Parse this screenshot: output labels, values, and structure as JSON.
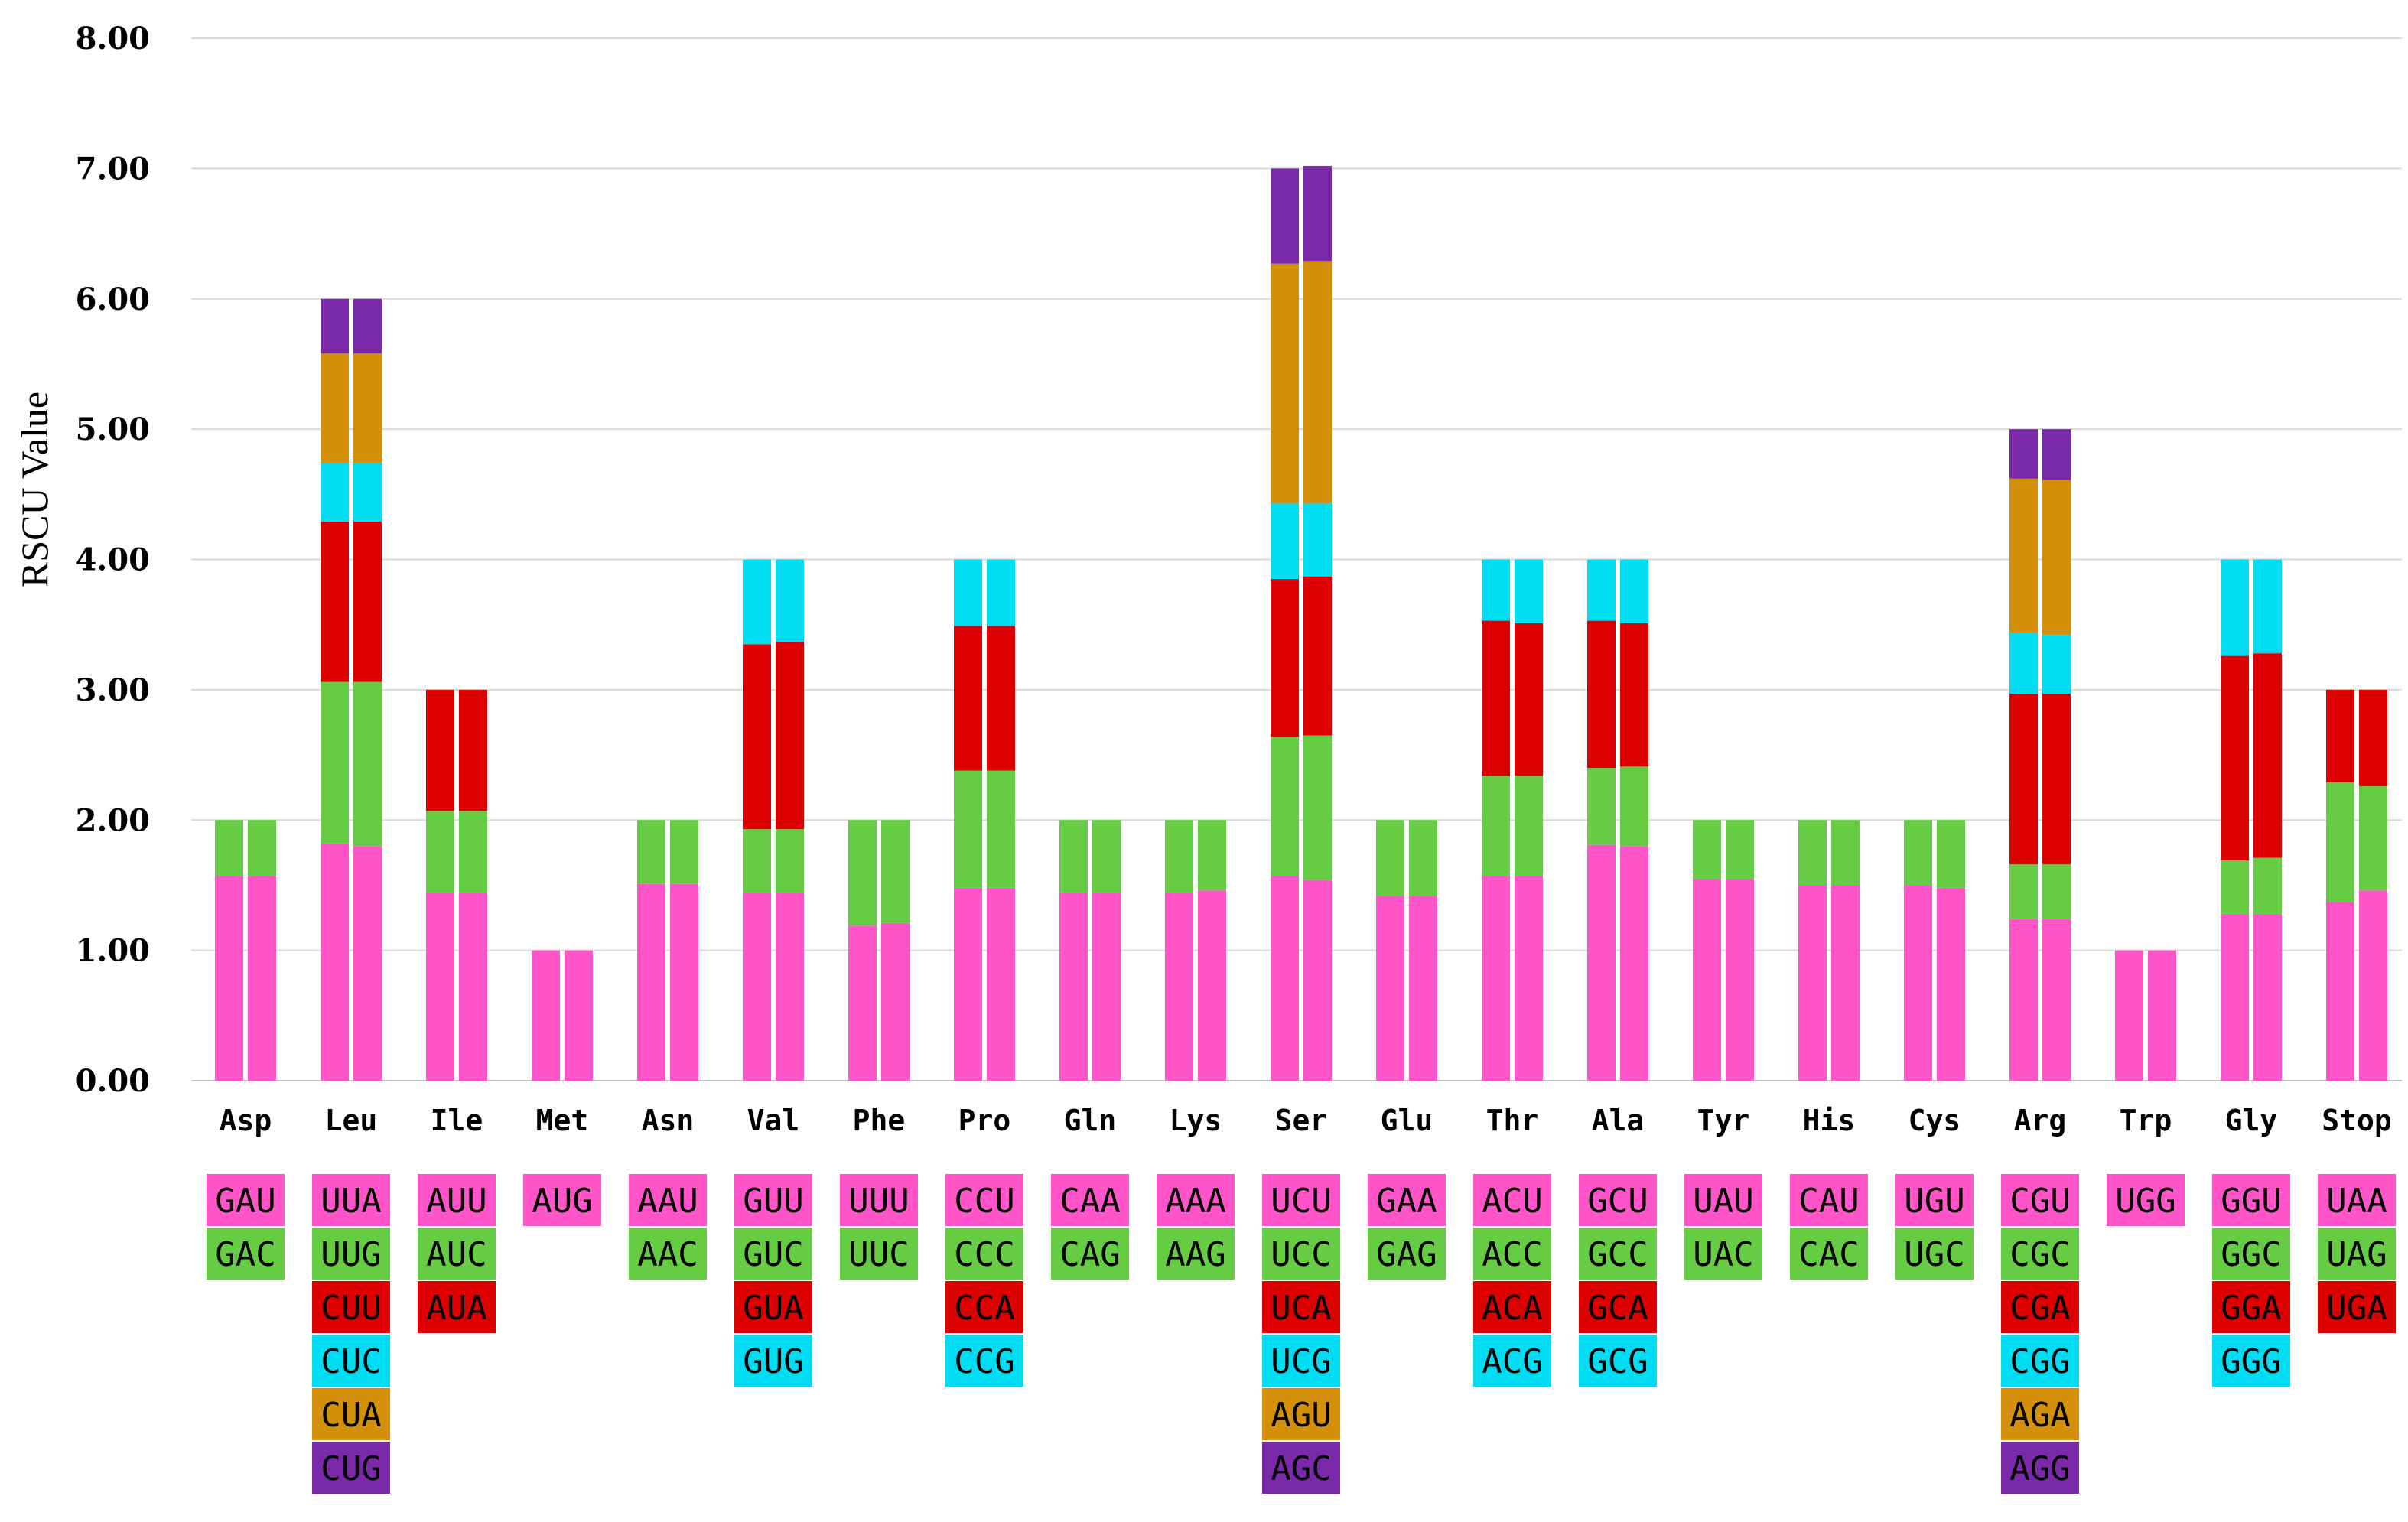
{
  "chart_data": {
    "type": "bar",
    "stacked": true,
    "title": "",
    "xlabel": "",
    "ylabel": "RSCU Value",
    "ylim": [
      0,
      8
    ],
    "y_ticks": [
      "0.00",
      "1.00",
      "2.00",
      "3.00",
      "4.00",
      "5.00",
      "6.00",
      "7.00",
      "8.00"
    ],
    "grid": true,
    "bars_per_category": 2,
    "colors": [
      "#ff55c8",
      "#66cc44",
      "#dd0000",
      "#00ddf2",
      "#d4900a",
      "#7a2aa8"
    ],
    "categories": [
      {
        "aa": "Asp",
        "codons": [
          "GAU",
          "GAC"
        ],
        "bars": [
          [
            1.57,
            0.43
          ],
          [
            1.57,
            0.43
          ]
        ]
      },
      {
        "aa": "Leu",
        "codons": [
          "UUA",
          "UUG",
          "CUU",
          "CUC",
          "CUA",
          "CUG"
        ],
        "bars": [
          [
            1.82,
            1.24,
            1.23,
            0.45,
            0.84,
            0.42
          ],
          [
            1.8,
            1.26,
            1.23,
            0.45,
            0.84,
            0.42
          ]
        ]
      },
      {
        "aa": "Ile",
        "codons": [
          "AUU",
          "AUC",
          "AUA"
        ],
        "bars": [
          [
            1.44,
            0.63,
            0.93
          ],
          [
            1.44,
            0.63,
            0.93
          ]
        ]
      },
      {
        "aa": "Met",
        "codons": [
          "AUG"
        ],
        "bars": [
          [
            1.0
          ],
          [
            1.0
          ]
        ]
      },
      {
        "aa": "Asn",
        "codons": [
          "AAU",
          "AAC"
        ],
        "bars": [
          [
            1.51,
            0.49
          ],
          [
            1.51,
            0.49
          ]
        ]
      },
      {
        "aa": "Val",
        "codons": [
          "GUU",
          "GUC",
          "GUA",
          "GUG"
        ],
        "bars": [
          [
            1.44,
            0.49,
            1.42,
            0.65
          ],
          [
            1.44,
            0.49,
            1.44,
            0.63
          ]
        ]
      },
      {
        "aa": "Phe",
        "codons": [
          "UUU",
          "UUC"
        ],
        "bars": [
          [
            1.19,
            0.81
          ],
          [
            1.21,
            0.79
          ]
        ]
      },
      {
        "aa": "Pro",
        "codons": [
          "CCU",
          "CCC",
          "CCA",
          "CCG"
        ],
        "bars": [
          [
            1.48,
            0.9,
            1.11,
            0.51
          ],
          [
            1.48,
            0.9,
            1.11,
            0.51
          ]
        ]
      },
      {
        "aa": "Gln",
        "codons": [
          "CAA",
          "CAG"
        ],
        "bars": [
          [
            1.44,
            0.56
          ],
          [
            1.44,
            0.56
          ]
        ]
      },
      {
        "aa": "Lys",
        "codons": [
          "AAA",
          "AAG"
        ],
        "bars": [
          [
            1.44,
            0.56
          ],
          [
            1.46,
            0.54
          ]
        ]
      },
      {
        "aa": "Ser",
        "codons": [
          "UCU",
          "UCC",
          "UCA",
          "UCG",
          "AGU",
          "AGC"
        ],
        "bars": [
          [
            1.57,
            1.07,
            1.21,
            0.58,
            1.84,
            0.73
          ],
          [
            1.54,
            1.11,
            1.22,
            0.56,
            1.86,
            0.73
          ]
        ]
      },
      {
        "aa": "Glu",
        "codons": [
          "GAA",
          "GAG"
        ],
        "bars": [
          [
            1.42,
            0.58
          ],
          [
            1.42,
            0.58
          ]
        ]
      },
      {
        "aa": "Thr",
        "codons": [
          "ACU",
          "ACC",
          "ACA",
          "ACG"
        ],
        "bars": [
          [
            1.57,
            0.77,
            1.19,
            0.47
          ],
          [
            1.57,
            0.77,
            1.17,
            0.49
          ]
        ]
      },
      {
        "aa": "Ala",
        "codons": [
          "GCU",
          "GCC",
          "GCA",
          "GCG"
        ],
        "bars": [
          [
            1.81,
            0.59,
            1.13,
            0.47
          ],
          [
            1.8,
            0.61,
            1.1,
            0.49
          ]
        ]
      },
      {
        "aa": "Tyr",
        "codons": [
          "UAU",
          "UAC"
        ],
        "bars": [
          [
            1.55,
            0.45
          ],
          [
            1.55,
            0.45
          ]
        ]
      },
      {
        "aa": "His",
        "codons": [
          "CAU",
          "CAC"
        ],
        "bars": [
          [
            1.5,
            0.5
          ],
          [
            1.5,
            0.5
          ]
        ]
      },
      {
        "aa": "Cys",
        "codons": [
          "UGU",
          "UGC"
        ],
        "bars": [
          [
            1.5,
            0.5
          ],
          [
            1.48,
            0.52
          ]
        ]
      },
      {
        "aa": "Arg",
        "codons": [
          "CGU",
          "CGC",
          "CGA",
          "CGG",
          "AGA",
          "AGG"
        ],
        "bars": [
          [
            1.24,
            0.42,
            1.31,
            0.47,
            1.18,
            0.38
          ],
          [
            1.24,
            0.42,
            1.31,
            0.45,
            1.19,
            0.39
          ]
        ]
      },
      {
        "aa": "Trp",
        "codons": [
          "UGG"
        ],
        "bars": [
          [
            1.0
          ],
          [
            1.0
          ]
        ]
      },
      {
        "aa": "Gly",
        "codons": [
          "GGU",
          "GGC",
          "GGA",
          "GGG"
        ],
        "bars": [
          [
            1.28,
            0.41,
            1.57,
            0.74
          ],
          [
            1.28,
            0.43,
            1.57,
            0.72
          ]
        ]
      },
      {
        "aa": "Stop",
        "codons": [
          "UAA",
          "UAG",
          "UGA"
        ],
        "bars": [
          [
            1.37,
            0.92,
            0.71
          ],
          [
            1.46,
            0.8,
            0.74
          ]
        ]
      }
    ]
  }
}
